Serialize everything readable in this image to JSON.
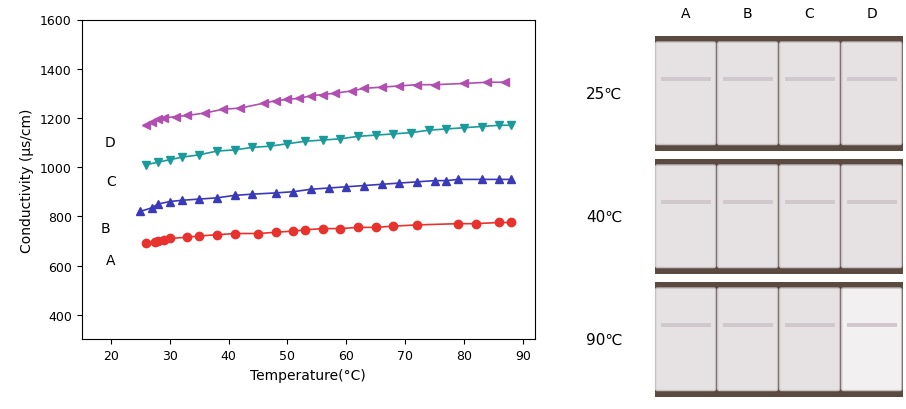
{
  "chart_data": {
    "type": "line",
    "xlabel": "Temperature(°C)",
    "ylabel": "Conductivity (μs/cm)",
    "xlim": [
      15,
      92
    ],
    "xticks": [
      20,
      30,
      40,
      50,
      60,
      70,
      80,
      90
    ],
    "ylim": [
      300,
      1600
    ],
    "yticks": [
      400,
      600,
      800,
      1000,
      1200,
      1400,
      1600
    ],
    "grid": false,
    "series": [
      {
        "name": "A",
        "color": "#e8322d",
        "marker": "o",
        "line_style": "solid",
        "x": [
          26,
          27.5,
          28,
          29,
          30,
          33,
          35,
          38,
          41,
          45,
          48,
          51,
          53,
          56,
          59,
          62,
          65,
          68,
          72,
          79,
          82,
          86,
          88
        ],
        "values": [
          690,
          695,
          700,
          705,
          710,
          715,
          720,
          725,
          730,
          730,
          735,
          740,
          745,
          750,
          750,
          755,
          755,
          760,
          765,
          770,
          770,
          775,
          775
        ]
      },
      {
        "name": "B",
        "color": "#3a3ab8",
        "marker": "^",
        "line_style": "solid",
        "x": [
          25,
          27,
          28,
          30,
          32,
          35,
          38,
          41,
          44,
          48,
          51,
          54,
          57,
          60,
          63,
          66,
          69,
          72,
          75,
          77,
          79,
          83,
          86,
          88
        ],
        "values": [
          820,
          835,
          850,
          860,
          865,
          870,
          875,
          885,
          890,
          895,
          900,
          910,
          915,
          920,
          925,
          930,
          935,
          940,
          945,
          945,
          950,
          950,
          950,
          950
        ]
      },
      {
        "name": "C",
        "color": "#1a9a9a",
        "marker": "v",
        "line_style": "solid",
        "x": [
          26,
          28,
          30,
          32,
          35,
          38,
          41,
          44,
          47,
          50,
          53,
          56,
          59,
          62,
          65,
          68,
          71,
          74,
          77,
          80,
          83,
          86,
          88
        ],
        "values": [
          1010,
          1020,
          1030,
          1040,
          1050,
          1065,
          1070,
          1080,
          1085,
          1095,
          1105,
          1110,
          1115,
          1125,
          1130,
          1135,
          1140,
          1150,
          1155,
          1160,
          1165,
          1170,
          1170
        ]
      },
      {
        "name": "D",
        "color": "#b04fb0",
        "marker": "<",
        "line_style": "solid",
        "x": [
          26,
          27,
          28,
          29,
          31,
          33,
          36,
          39,
          42,
          46,
          48,
          50,
          52,
          54,
          56,
          58,
          61,
          63,
          66,
          69,
          72,
          75,
          80,
          84,
          87
        ],
        "values": [
          1170,
          1185,
          1195,
          1200,
          1205,
          1210,
          1220,
          1235,
          1240,
          1260,
          1270,
          1275,
          1280,
          1290,
          1295,
          1300,
          1310,
          1320,
          1325,
          1330,
          1335,
          1335,
          1340,
          1345,
          1345
        ]
      }
    ]
  },
  "photo_panel": {
    "columns": [
      "A",
      "B",
      "C",
      "D"
    ],
    "rows": [
      "25℃",
      "40℃",
      "90℃"
    ]
  }
}
